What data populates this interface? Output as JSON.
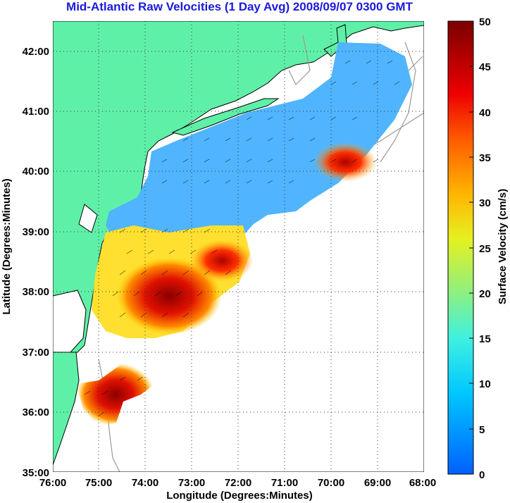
{
  "title": "Mid-Atlantic Raw Velocities (1 Day Avg) 2008/09/07 0300 GMT",
  "map": {
    "xlabel": "Longitude (Degrees:Minutes)",
    "ylabel": "Latitude (Degrees:Minutes)",
    "x_ticks": [
      "76:00",
      "75:00",
      "74:00",
      "73:00",
      "72:00",
      "71:00",
      "70:00",
      "69:00",
      "68:00"
    ],
    "y_ticks": [
      "42:00",
      "41:00",
      "40:00",
      "39:00",
      "38:00",
      "37:00",
      "36:00",
      "35:00"
    ],
    "lon_range": [
      -76,
      -68
    ],
    "lat_range": [
      35,
      42.5
    ],
    "grid": "dotted",
    "land_color": "#5ff0a8",
    "coast_line_color": "#000000",
    "bathymetry_color": "#9a9a9a"
  },
  "colorbar": {
    "label": "Surface Velocity (cm/s)",
    "ticks": [
      "0",
      "5",
      "10",
      "15",
      "20",
      "25",
      "30",
      "35",
      "40",
      "45",
      "50"
    ],
    "range": [
      0,
      50
    ],
    "colormap": "jet"
  }
}
